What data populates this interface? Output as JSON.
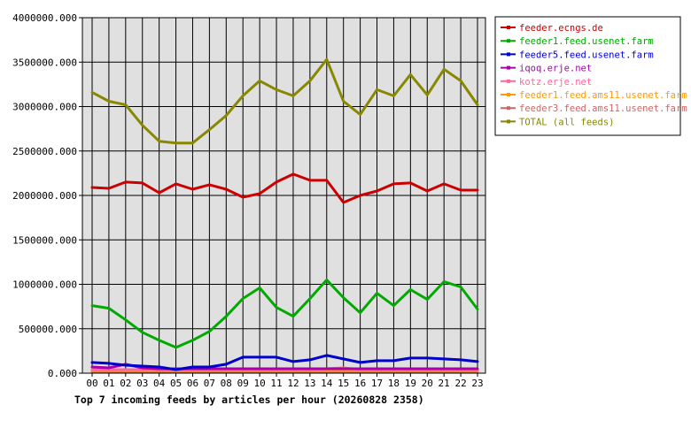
{
  "chart_data": {
    "type": "line",
    "title": "Top 7 incoming feeds by articles per hour (20260828 2358)",
    "xlabel": "",
    "ylabel": "",
    "ylim": [
      0,
      4000000
    ],
    "yticks": [
      "0.000",
      "500000.000",
      "1000000.000",
      "1500000.000",
      "2000000.000",
      "2500000.000",
      "3000000.000",
      "3500000.000",
      "4000000.000"
    ],
    "ytick_values": [
      0,
      500000,
      1000000,
      1500000,
      2000000,
      2500000,
      3000000,
      3500000,
      4000000
    ],
    "categories": [
      "00",
      "01",
      "02",
      "03",
      "04",
      "05",
      "06",
      "07",
      "08",
      "09",
      "10",
      "11",
      "12",
      "13",
      "14",
      "15",
      "16",
      "17",
      "18",
      "19",
      "20",
      "21",
      "22",
      "23"
    ],
    "grid": true,
    "background": "#e0e0e0",
    "legend_position": "right",
    "series": [
      {
        "name": "feeder.ecngs.de",
        "color": "#cc0000",
        "values": [
          2090000,
          2080000,
          2150000,
          2140000,
          2030000,
          2130000,
          2070000,
          2120000,
          2070000,
          1980000,
          2020000,
          2150000,
          2240000,
          2170000,
          2170000,
          1920000,
          2000000,
          2050000,
          2130000,
          2140000,
          2050000,
          2130000,
          2060000,
          2060000
        ]
      },
      {
        "name": "feeder1.feed.usenet.farm",
        "color": "#00aa00",
        "values": [
          760000,
          730000,
          600000,
          460000,
          370000,
          290000,
          370000,
          470000,
          640000,
          840000,
          960000,
          740000,
          640000,
          840000,
          1050000,
          850000,
          680000,
          900000,
          760000,
          940000,
          830000,
          1030000,
          970000,
          720000
        ]
      },
      {
        "name": "feeder5.feed.usenet.farm",
        "color": "#0000cc",
        "values": [
          120000,
          110000,
          90000,
          80000,
          70000,
          40000,
          70000,
          70000,
          100000,
          180000,
          180000,
          180000,
          130000,
          150000,
          200000,
          160000,
          120000,
          140000,
          140000,
          170000,
          170000,
          160000,
          150000,
          130000
        ]
      },
      {
        "name": "iqoq.erje.net",
        "color": "#aa00aa",
        "values": [
          70000,
          60000,
          100000,
          60000,
          50000,
          50000,
          50000,
          50000,
          50000,
          50000,
          50000,
          50000,
          50000,
          50000,
          50000,
          50000,
          50000,
          50000,
          50000,
          50000,
          50000,
          50000,
          50000,
          50000
        ]
      },
      {
        "name": "kotz.erje.net",
        "color": "#ff6699",
        "values": [
          40000,
          40000,
          40000,
          40000,
          40000,
          40000,
          40000,
          40000,
          40000,
          40000,
          40000,
          40000,
          40000,
          40000,
          50000,
          60000,
          40000,
          40000,
          40000,
          40000,
          40000,
          40000,
          40000,
          40000
        ]
      },
      {
        "name": "feeder1.feed.ams11.usenet.farm",
        "color": "#ff9900",
        "values": [
          30000,
          30000,
          30000,
          30000,
          30000,
          30000,
          30000,
          30000,
          30000,
          30000,
          30000,
          30000,
          30000,
          30000,
          30000,
          30000,
          30000,
          30000,
          30000,
          30000,
          30000,
          30000,
          30000,
          30000
        ]
      },
      {
        "name": "feeder3.feed.ams11.usenet.farm",
        "color": "#cc6666",
        "values": [
          20000,
          20000,
          20000,
          20000,
          20000,
          20000,
          20000,
          20000,
          20000,
          20000,
          20000,
          20000,
          20000,
          20000,
          20000,
          20000,
          20000,
          20000,
          20000,
          20000,
          20000,
          20000,
          20000,
          20000
        ]
      },
      {
        "name": "TOTAL (all feeds)",
        "color": "#888800",
        "values": [
          3160000,
          3060000,
          3020000,
          2790000,
          2610000,
          2590000,
          2590000,
          2740000,
          2900000,
          3120000,
          3290000,
          3190000,
          3120000,
          3290000,
          3530000,
          3060000,
          2910000,
          3190000,
          3120000,
          3360000,
          3130000,
          3420000,
          3290000,
          3020000
        ]
      }
    ]
  }
}
